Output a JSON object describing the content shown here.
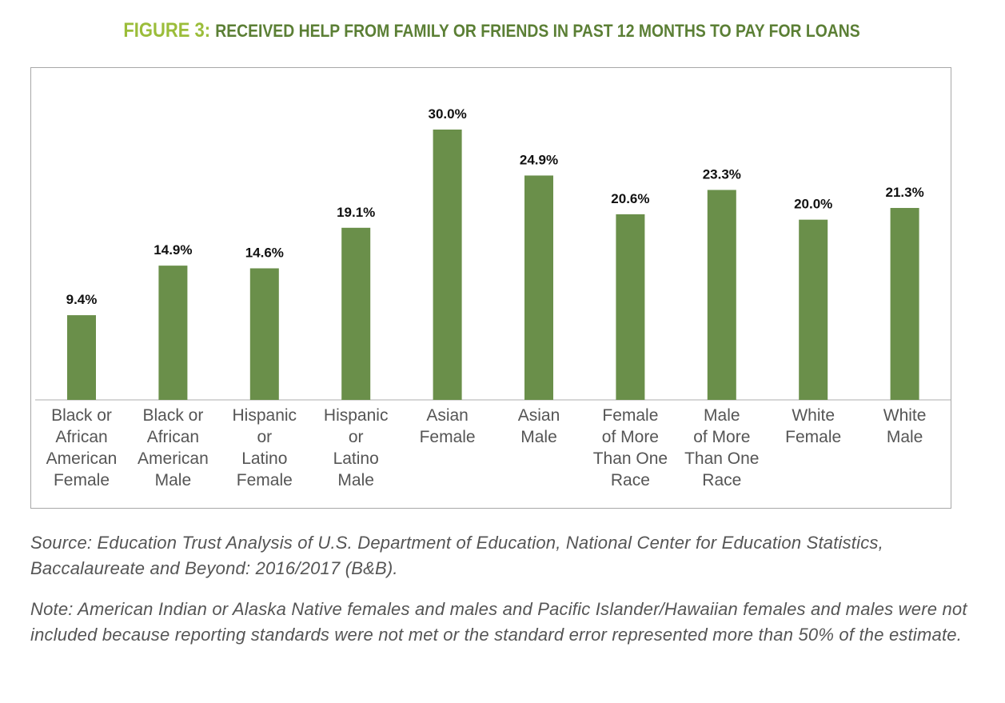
{
  "figure": {
    "label": "FIGURE 3:",
    "title": "RECEIVED HELP FROM FAMILY OR FRIENDS IN PAST 12 MONTHS TO PAY FOR LOANS"
  },
  "colors": {
    "bar": "#6a8f4a",
    "label_dark": "#111111",
    "axis_text": "#555555",
    "figure_label": "#9bbd3a",
    "title_text": "#5b7f35"
  },
  "chart_data": {
    "type": "bar",
    "title": "RECEIVED HELP FROM FAMILY OR FRIENDS IN PAST 12 MONTHS TO PAY FOR LOANS",
    "categories": [
      [
        "Black or",
        "African",
        "American",
        "Female"
      ],
      [
        "Black or",
        "African",
        "American",
        "Male"
      ],
      [
        "Hispanic",
        "or",
        "Latino",
        "Female"
      ],
      [
        "Hispanic",
        "or",
        "Latino",
        "Male"
      ],
      [
        "Asian",
        "Female"
      ],
      [
        "Asian",
        "Male"
      ],
      [
        "Female",
        "of More",
        "Than One",
        "Race"
      ],
      [
        "Male",
        "of More",
        "Than One",
        "Race"
      ],
      [
        "White",
        "Female"
      ],
      [
        "White",
        "Male"
      ]
    ],
    "values": [
      9.4,
      14.9,
      14.6,
      19.1,
      30.0,
      24.9,
      20.6,
      23.3,
      20.0,
      21.3
    ],
    "value_labels": [
      "9.4%",
      "14.9%",
      "14.6%",
      "19.1%",
      "30.0%",
      "24.9%",
      "20.6%",
      "23.3%",
      "20.0%",
      "21.3%"
    ],
    "ylim": [
      0,
      30
    ],
    "xlabel": "",
    "ylabel": "",
    "grid": false,
    "legend": "none"
  },
  "source_text": "Source: Education Trust Analysis of U.S. Department of Education, National Center for Education Statistics, Baccalaureate and Beyond: 2016/2017 (B&B).",
  "note_text": "Note: American Indian or Alaska Native females and males and Pacific Islander/Hawaiian females and males were not included because reporting standards were not met or the standard error represented more than 50% of the estimate."
}
